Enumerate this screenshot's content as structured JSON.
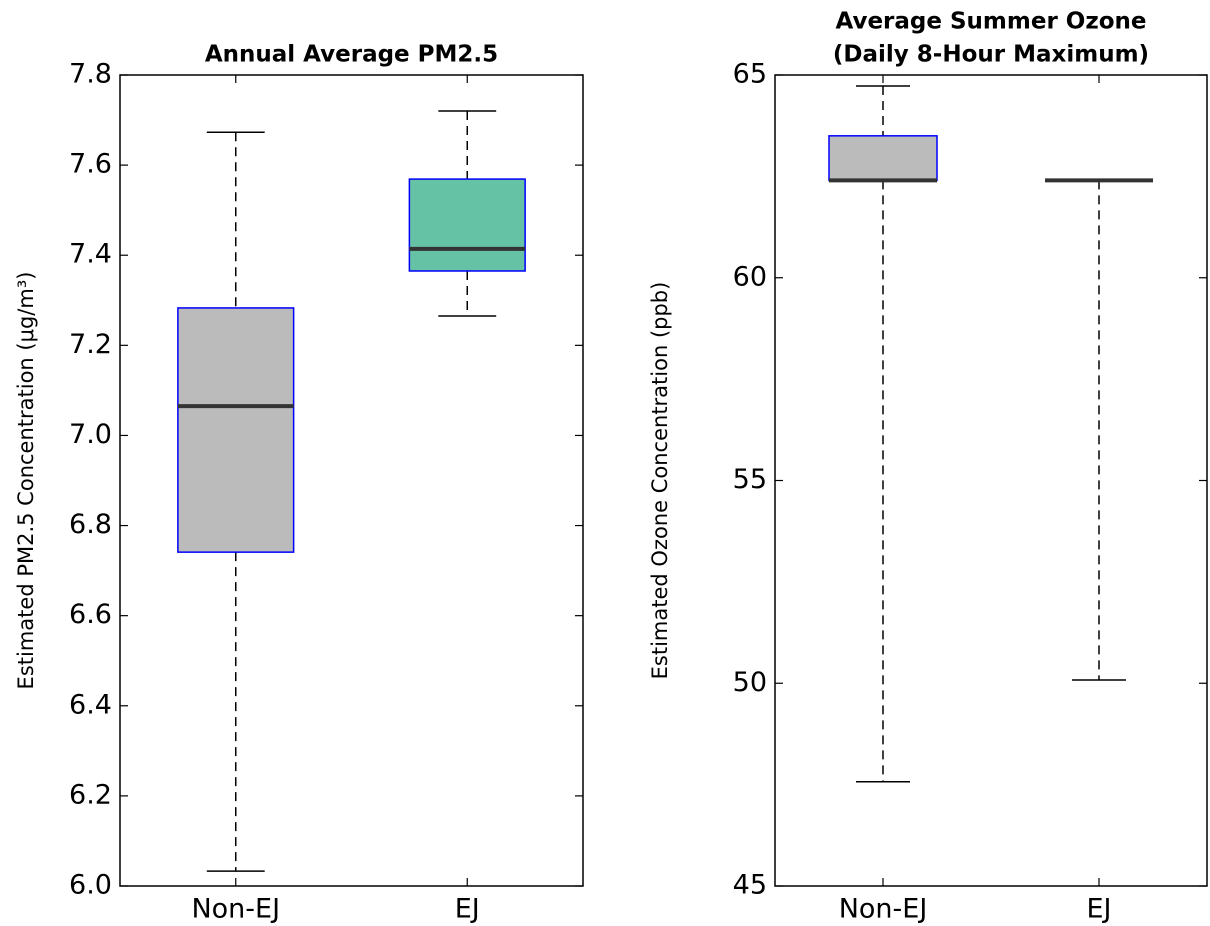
{
  "chart_data": [
    {
      "type": "box",
      "title": [
        "Annual Average PM2.5"
      ],
      "ylabel": "Estimated PM2.5 Concentration (μg/m³)",
      "categories": [
        "Non-EJ",
        "EJ"
      ],
      "boxes": [
        {
          "min": 6.033,
          "q1": 6.741,
          "median": 7.065,
          "q3": 7.283,
          "max": 7.673,
          "color": "#bbbbbb"
        },
        {
          "min": 7.265,
          "q1": 7.365,
          "median": 7.414,
          "q3": 7.569,
          "max": 7.72,
          "color": "#66c2a5"
        }
      ],
      "ylim": [
        6.0,
        7.8
      ],
      "yticks": [
        {
          "value": 6,
          "label": "6.0"
        },
        6.2,
        6.4,
        6.6,
        6.8,
        {
          "value": 7,
          "label": "7.0"
        },
        7.2,
        7.4,
        7.6,
        7.8
      ]
    },
    {
      "type": "box",
      "title": [
        "Average Summer Ozone",
        "(Daily 8-Hour Maximum)"
      ],
      "ylabel": "Estimated Ozone Concentration (ppb)",
      "categories": [
        "Non-EJ",
        "EJ"
      ],
      "boxes": [
        {
          "min": 47.57,
          "q1": 62.4,
          "median": 62.4,
          "q3": 63.5,
          "max": 64.73,
          "color": "#bbbbbb"
        },
        {
          "min": 50.08,
          "q1": 62.4,
          "median": 62.4,
          "q3": 62.4,
          "max": 62.4,
          "color": "#66c2a5"
        }
      ],
      "ylim": [
        45,
        65
      ],
      "yticks": [
        45,
        50,
        55,
        60,
        65
      ]
    }
  ]
}
